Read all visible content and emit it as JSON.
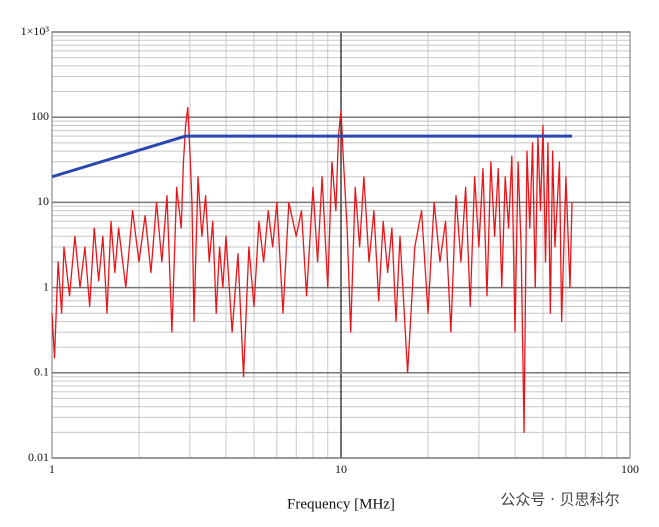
{
  "chart_data": {
    "type": "line",
    "x_label": "Frequency [MHz]",
    "watermark": "公众号 · 贝思科尔",
    "xscale": "log",
    "yscale": "log",
    "grid": true,
    "xlim": [
      1,
      100
    ],
    "ylim": [
      0.01,
      1000
    ],
    "xticks": [
      1,
      10,
      100
    ],
    "yticks": [
      0.01,
      0.1,
      1,
      10,
      100,
      {
        "value": 1000,
        "label": "1×10³"
      }
    ],
    "xminorticks": [
      2,
      3,
      4,
      5,
      6,
      7,
      8,
      9,
      20,
      30,
      40,
      50,
      60,
      70,
      80,
      90
    ],
    "yminorticks": [
      0.02,
      0.03,
      0.04,
      0.05,
      0.06,
      0.07,
      0.08,
      0.09,
      0.2,
      0.3,
      0.4,
      0.5,
      0.6,
      0.7,
      0.8,
      0.9,
      2,
      3,
      4,
      5,
      6,
      7,
      8,
      9,
      20,
      30,
      40,
      50,
      60,
      70,
      80,
      90,
      200,
      300,
      400,
      500,
      600,
      700,
      800,
      900
    ],
    "series": [
      {
        "color": "#e8161b",
        "x": [
          1,
          1.02,
          1.05,
          1.08,
          1.1,
          1.15,
          1.2,
          1.25,
          1.3,
          1.35,
          1.4,
          1.45,
          1.5,
          1.55,
          1.6,
          1.65,
          1.7,
          1.8,
          1.9,
          2.0,
          2.1,
          2.2,
          2.3,
          2.4,
          2.5,
          2.6,
          2.7,
          2.8,
          2.85,
          2.9,
          2.95,
          3.0,
          3.05,
          3.1,
          3.2,
          3.3,
          3.4,
          3.5,
          3.6,
          3.7,
          3.8,
          3.9,
          4.0,
          4.2,
          4.4,
          4.6,
          4.8,
          5.0,
          5.2,
          5.4,
          5.6,
          5.8,
          6.0,
          6.3,
          6.6,
          7.0,
          7.3,
          7.6,
          8.0,
          8.3,
          8.6,
          9.0,
          9.3,
          9.6,
          9.8,
          10,
          10.2,
          10.5,
          10.8,
          11.2,
          11.6,
          12,
          12.5,
          13,
          13.5,
          14,
          14.5,
          15,
          15.5,
          16,
          17,
          18,
          19,
          20,
          21,
          22,
          23,
          24,
          25,
          26,
          27,
          28,
          29,
          30,
          31,
          32,
          33,
          34,
          35,
          36,
          37,
          38,
          39,
          40,
          41,
          42,
          43,
          44,
          45,
          46,
          47,
          48,
          49,
          50,
          51,
          52,
          53,
          54,
          55,
          57,
          58,
          60,
          62,
          63
        ],
        "values": [
          0.5,
          0.15,
          2,
          0.5,
          3,
          0.8,
          4,
          1,
          3,
          0.6,
          5,
          1.2,
          4,
          0.5,
          6,
          1.5,
          5,
          1,
          8,
          2,
          7,
          1.5,
          10,
          2,
          12,
          0.3,
          15,
          5,
          30,
          80,
          130,
          40,
          10,
          0.4,
          20,
          4,
          12,
          2,
          6,
          0.5,
          3,
          1,
          4,
          0.3,
          2.5,
          0.09,
          3,
          0.6,
          6,
          2,
          8,
          3,
          10,
          0.5,
          10,
          4,
          8,
          0.8,
          15,
          2,
          20,
          1,
          30,
          8,
          60,
          120,
          30,
          5,
          0.3,
          15,
          3,
          20,
          2,
          8,
          0.7,
          6,
          1.5,
          5,
          0.4,
          4,
          0.1,
          3,
          8,
          0.5,
          10,
          2,
          6,
          0.3,
          12,
          2,
          15,
          0.6,
          20,
          3,
          25,
          0.8,
          30,
          4,
          25,
          1,
          20,
          5,
          35,
          0.3,
          30,
          3,
          0.02,
          40,
          5,
          50,
          1,
          60,
          8,
          80,
          2,
          50,
          0.5,
          40,
          3,
          30,
          0.4,
          20,
          1,
          10
        ]
      },
      {
        "color": "#2a46b0",
        "x": [
          1,
          2.9,
          63
        ],
        "values": [
          20,
          60,
          60
        ]
      }
    ]
  }
}
